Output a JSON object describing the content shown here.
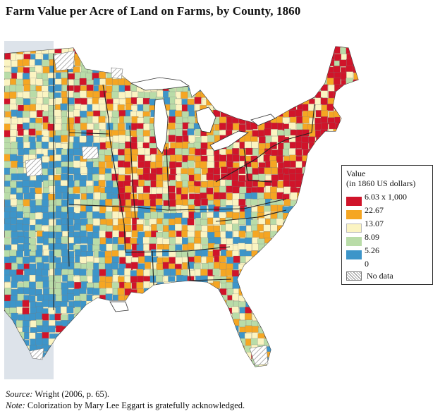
{
  "title": "Farm Value per Acre of Land on Farms, by County, 1860",
  "legend": {
    "title_line1": "Value",
    "title_line2": "(in 1860 US dollars)",
    "ticks": [
      "6.03 x 1,000",
      "22.67",
      "13.07",
      "8.09",
      "5.26",
      "0"
    ],
    "no_data_label": "No data",
    "colors": [
      "#d0142a",
      "#f5a623",
      "#fbf4c2",
      "#b9dca8",
      "#3d95c9"
    ],
    "no_data_color": "#cfcfcf"
  },
  "colors": {
    "non_union_fill": "#dde3ea",
    "water": "#ffffff",
    "border": "#333333"
  },
  "footer": {
    "source_label": "Source:",
    "source_text": " Wright (2006, p. 65).",
    "note_label": "Note:",
    "note_text": " Colorization by Mary Lee Eggart is gratefully acknowledged."
  }
}
